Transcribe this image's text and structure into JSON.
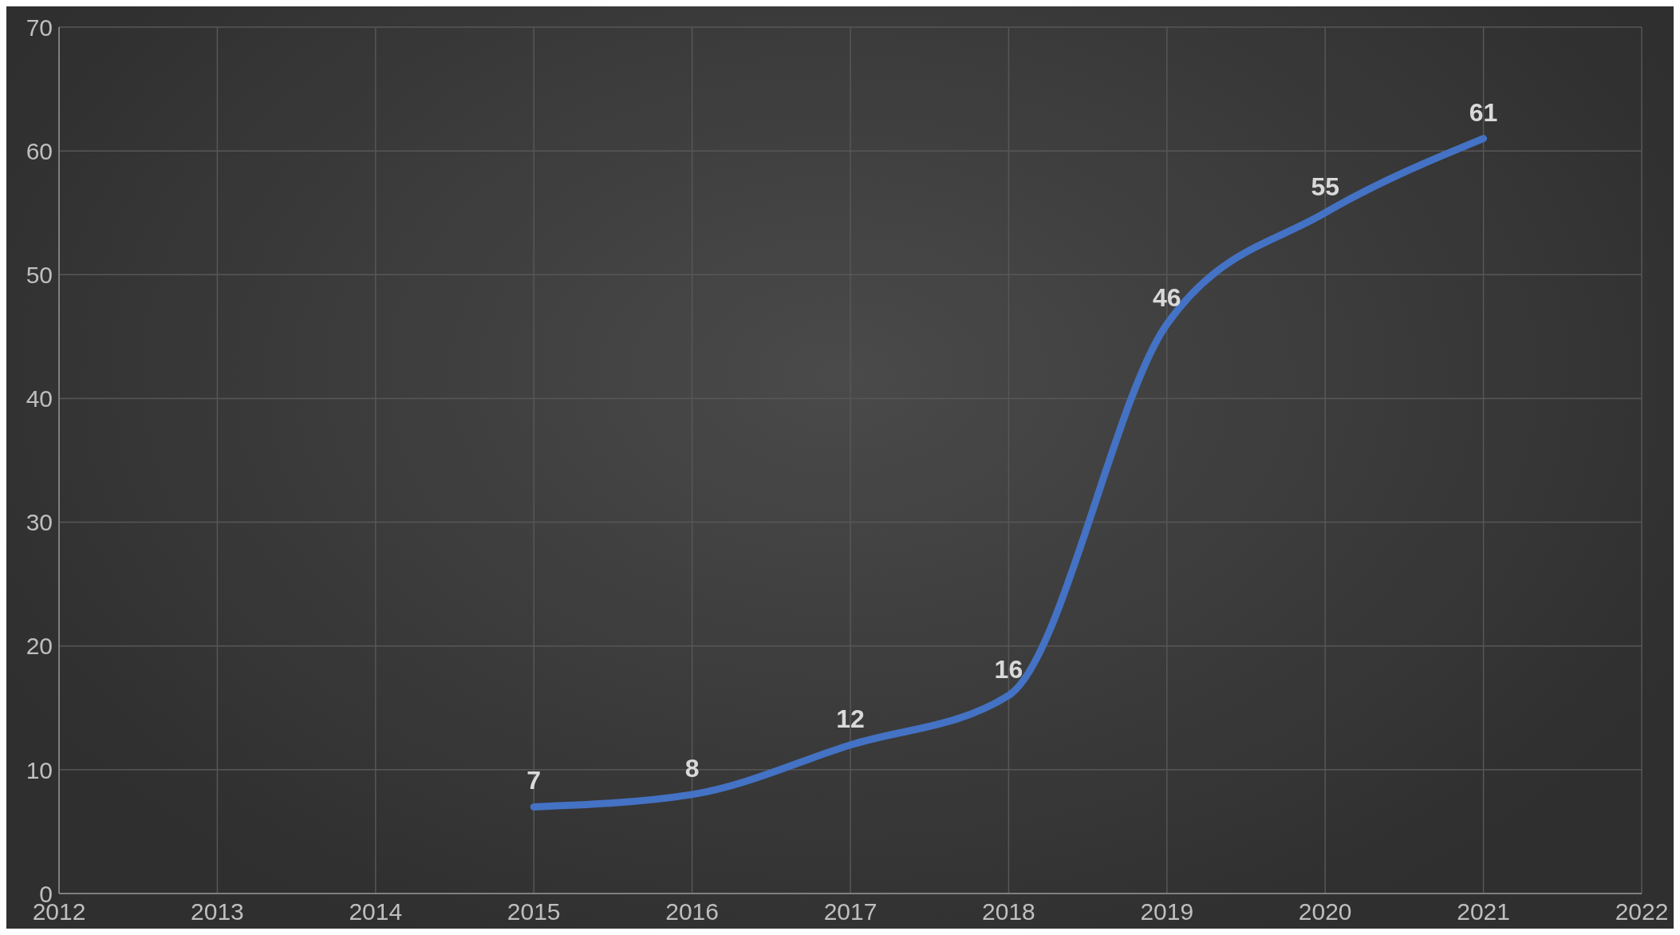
{
  "chart_data": {
    "type": "line",
    "x": [
      2015,
      2016,
      2017,
      2018,
      2019,
      2020,
      2021
    ],
    "series": [
      {
        "color": "#4472c4",
        "values": [
          7,
          8,
          12,
          16,
          46,
          55,
          61
        ]
      }
    ],
    "xlim": [
      2012,
      2022
    ],
    "xticks": [
      2012,
      2013,
      2014,
      2015,
      2016,
      2017,
      2018,
      2019,
      2020,
      2021,
      2022
    ],
    "ylim": [
      0,
      70
    ],
    "yticks": [
      0,
      10,
      20,
      30,
      40,
      50,
      60,
      70
    ],
    "grid": true,
    "data_labels": true
  }
}
